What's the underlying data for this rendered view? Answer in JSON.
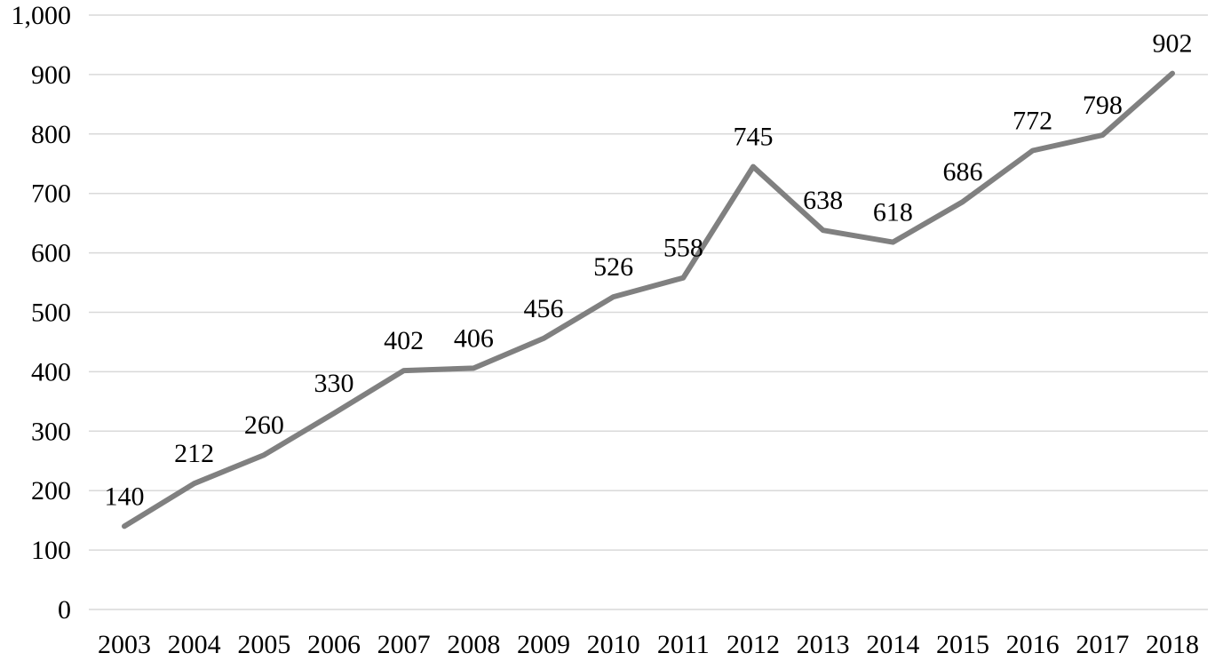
{
  "chart_data": {
    "type": "line",
    "categories": [
      "2003",
      "2004",
      "2005",
      "2006",
      "2007",
      "2008",
      "2009",
      "2010",
      "2011",
      "2012",
      "2013",
      "2014",
      "2015",
      "2016",
      "2017",
      "2018"
    ],
    "series": [
      {
        "values": [
          140,
          212,
          260,
          330,
          402,
          406,
          456,
          526,
          558,
          745,
          638,
          618,
          686,
          772,
          798,
          902
        ]
      }
    ],
    "ylim": [
      0,
      1000
    ],
    "yticks": [
      "0",
      "100",
      "200",
      "300",
      "400",
      "500",
      "600",
      "700",
      "800",
      "900",
      "1,000"
    ],
    "data_labels": [
      "140",
      "212",
      "260",
      "330",
      "402",
      "406",
      "456",
      "526",
      "558",
      "745",
      "638",
      "618",
      "686",
      "772",
      "798",
      "902"
    ],
    "grid": true,
    "legend": "none",
    "colors": {
      "line": "#808080",
      "grid": "#d9d9d9"
    }
  }
}
